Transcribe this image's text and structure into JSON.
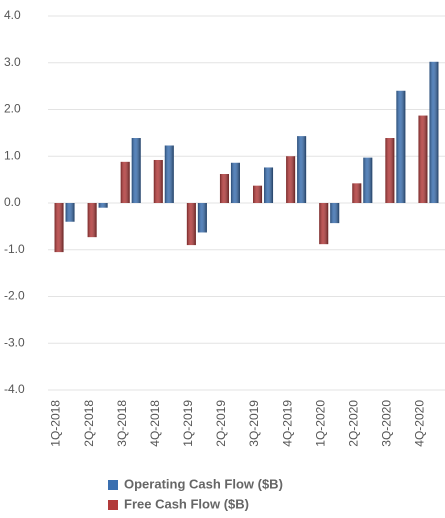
{
  "chart_data": {
    "type": "bar",
    "categories": [
      "1Q-2018",
      "2Q-2018",
      "3Q-2018",
      "4Q-2018",
      "1Q-2019",
      "2Q-2019",
      "3Q-2019",
      "4Q-2019",
      "1Q-2020",
      "2Q-2020",
      "3Q-2020",
      "4Q-2020"
    ],
    "series": [
      {
        "name": "Free Cash Flow ($B)",
        "color": "#b23a3a",
        "values": [
          -1.05,
          -0.73,
          0.88,
          0.92,
          -0.9,
          0.62,
          0.37,
          1.0,
          -0.88,
          0.42,
          1.39,
          1.87
        ]
      },
      {
        "name": "Operating Cash Flow ($B)",
        "color": "#3a6fb0",
        "values": [
          -0.4,
          -0.1,
          1.39,
          1.23,
          -0.63,
          0.86,
          0.76,
          1.43,
          -0.43,
          0.97,
          2.4,
          3.02
        ]
      }
    ],
    "ylim": [
      -4,
      4
    ],
    "yticks": [
      {
        "value": -4,
        "label": "-4.0"
      },
      {
        "value": -3,
        "label": "-3.0"
      },
      {
        "value": -2,
        "label": "-2.0"
      },
      {
        "value": -1,
        "label": "-1.0"
      },
      {
        "value": 0,
        "label": "0.0"
      },
      {
        "value": 1,
        "label": "1.0"
      },
      {
        "value": 2,
        "label": "2.0"
      },
      {
        "value": 3,
        "label": "3.0"
      },
      {
        "value": 4,
        "label": "4.0"
      }
    ],
    "grid": true
  }
}
